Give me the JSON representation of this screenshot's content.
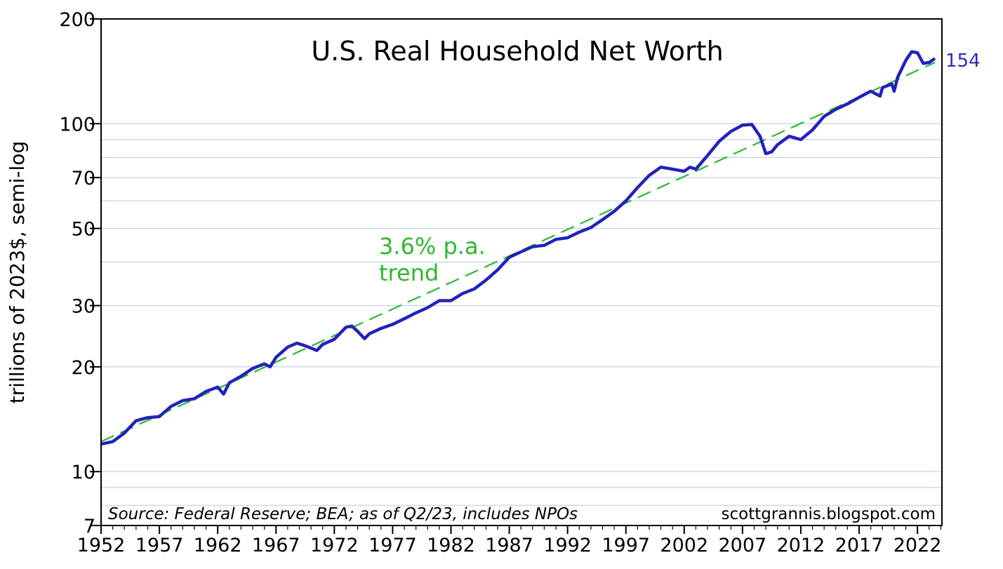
{
  "chart_data": {
    "type": "line",
    "title": "U.S. Real Household Net Worth",
    "ylabel": "trillions of 2023$, semi-log",
    "xlabel": "",
    "yscale": "log",
    "ylim": [
      7,
      200
    ],
    "xlim": [
      1952,
      2024.1
    ],
    "grid": true,
    "y_ticks": [
      7,
      10,
      20,
      30,
      50,
      70,
      100,
      200
    ],
    "y_tick_labels": [
      "7",
      "10",
      "20",
      "30",
      "50",
      "70",
      "100",
      "200"
    ],
    "y_minor_gridlines": [
      8,
      9,
      40,
      60,
      80,
      90
    ],
    "x_ticks": [
      1952,
      1957,
      1962,
      1967,
      1972,
      1977,
      1982,
      1987,
      1992,
      1997,
      2002,
      2007,
      2012,
      2017,
      2022
    ],
    "x_tick_labels": [
      "1952",
      "1957",
      "1962",
      "1967",
      "1972",
      "1977",
      "1982",
      "1987",
      "1992",
      "1997",
      "2002",
      "2007",
      "2012",
      "2017",
      "2022"
    ],
    "series": [
      {
        "name": "",
        "color": "#2222bb",
        "x": [
          1952.0,
          1953.0,
          1954.0,
          1955.0,
          1956.0,
          1957.0,
          1958.0,
          1959.0,
          1960.0,
          1961.0,
          1962.0,
          1962.5,
          1963.0,
          1964.0,
          1965.0,
          1966.0,
          1966.5,
          1967.0,
          1968.0,
          1968.8,
          1969.5,
          1970.5,
          1971.0,
          1972.0,
          1973.0,
          1973.5,
          1974.0,
          1974.6,
          1975.0,
          1976.0,
          1977.0,
          1978.0,
          1979.0,
          1980.0,
          1981.0,
          1982.0,
          1983.0,
          1984.0,
          1985.0,
          1986.0,
          1987.0,
          1988.0,
          1989.0,
          1990.0,
          1991.0,
          1992.0,
          1993.0,
          1994.0,
          1995.0,
          1996.0,
          1997.0,
          1998.0,
          1999.0,
          2000.0,
          2001.0,
          2002.0,
          2002.5,
          2003.0,
          2004.0,
          2005.0,
          2006.0,
          2007.0,
          2007.8,
          2008.5,
          2009.0,
          2009.5,
          2010.0,
          2011.0,
          2012.0,
          2013.0,
          2014.0,
          2015.0,
          2016.0,
          2017.0,
          2018.0,
          2018.8,
          2019.0,
          2019.8,
          2020.0,
          2020.3,
          2021.0,
          2021.5,
          2022.0,
          2022.5,
          2023.0,
          2023.5
        ],
        "y": [
          12.0,
          12.2,
          12.9,
          14.0,
          14.3,
          14.4,
          15.4,
          16.0,
          16.2,
          17.0,
          17.5,
          16.7,
          18.0,
          18.8,
          19.8,
          20.4,
          20.0,
          21.3,
          22.8,
          23.4,
          23.0,
          22.3,
          23.2,
          24.0,
          26.0,
          26.2,
          25.3,
          24.1,
          24.9,
          25.8,
          26.5,
          27.5,
          28.6,
          29.6,
          31.0,
          31.0,
          32.5,
          33.5,
          35.5,
          38.0,
          41.3,
          42.8,
          44.3,
          44.7,
          46.5,
          47.0,
          48.8,
          50.3,
          53.0,
          56.0,
          60.0,
          65.5,
          71.0,
          75.0,
          74.0,
          73.0,
          75.0,
          74.0,
          81.0,
          89.0,
          95.0,
          99.0,
          99.5,
          92.0,
          82.0,
          83.0,
          87.0,
          92.0,
          90.0,
          96.0,
          105.0,
          110.0,
          114.0,
          119.0,
          124.0,
          120.0,
          127.0,
          130.0,
          124.0,
          136.0,
          152.0,
          161.0,
          160.0,
          149.0,
          150.0,
          154.0
        ]
      },
      {
        "name": "",
        "color": "#2db82d",
        "dashed": true,
        "x": [
          1952.0,
          2023.5
        ],
        "y": [
          12.2,
          150.0
        ]
      }
    ],
    "annotations": {
      "trend_line1": "3.6% p.a.",
      "trend_line2": "trend",
      "last_value": "154"
    }
  },
  "source_note": "Source: Federal Reserve; BEA; as of Q2/23, includes NPOs",
  "credit": "scottgrannis.blogspot.com"
}
